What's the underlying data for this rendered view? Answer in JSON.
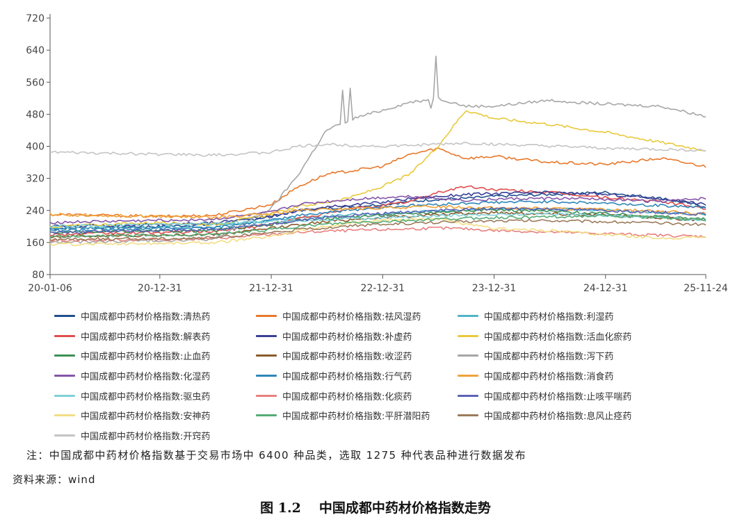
{
  "chart_data": {
    "type": "line",
    "title": "",
    "xlabel": "",
    "ylabel": "",
    "ylim": [
      80,
      720
    ],
    "yticks": [
      80,
      160,
      240,
      320,
      400,
      480,
      560,
      640,
      720
    ],
    "xticks": [
      "20-01-06",
      "20-12-31",
      "21-12-31",
      "22-12-31",
      "23-12-31",
      "24-12-31",
      "25-11-24"
    ],
    "xtick_positions_years": [
      0,
      0.985,
      1.985,
      2.985,
      3.985,
      4.985,
      5.885
    ],
    "x_anchor_labels": [
      "20-01-06",
      "20-12-31",
      "21-06-30",
      "21-12-31",
      "22-03-31",
      "22-06-30",
      "22-09-30",
      "22-12-31",
      "23-03-31",
      "23-06-30",
      "23-09-30",
      "23-12-31",
      "24-06-30",
      "24-12-31",
      "25-06-30",
      "25-11-24"
    ],
    "grid": false,
    "legend": "bottom",
    "series": [
      {
        "name": "中国成都中药材价格指数:清热药",
        "color": "#1f4e8c",
        "values": [
          195,
          200,
          205,
          225,
          240,
          245,
          250,
          255,
          262,
          268,
          270,
          275,
          280,
          285,
          270,
          250
        ]
      },
      {
        "name": "中国成都中药材价格指数:祛风湿药",
        "color": "#e8782a",
        "values": [
          230,
          225,
          228,
          255,
          300,
          330,
          340,
          350,
          380,
          395,
          370,
          375,
          360,
          355,
          370,
          350
        ]
      },
      {
        "name": "中国成都中药材价格指数:利湿药",
        "color": "#4fb3c8",
        "values": [
          195,
          198,
          200,
          215,
          222,
          226,
          230,
          232,
          235,
          238,
          240,
          242,
          244,
          240,
          235,
          230
        ]
      },
      {
        "name": "中国成都中药材价格指数:解表药",
        "color": "#e04d4d",
        "values": [
          180,
          185,
          188,
          205,
          220,
          232,
          245,
          252,
          262,
          285,
          300,
          292,
          285,
          272,
          262,
          245
        ]
      },
      {
        "name": "中国成都中药材价格指数:补虚药",
        "color": "#3a3f96",
        "values": [
          200,
          205,
          210,
          225,
          240,
          248,
          255,
          260,
          270,
          275,
          280,
          282,
          285,
          280,
          270,
          255
        ]
      },
      {
        "name": "中国成都中药材价格指数:活血化瘀药",
        "color": "#e8c93a",
        "values": [
          200,
          210,
          205,
          230,
          250,
          260,
          275,
          300,
          330,
          400,
          490,
          470,
          455,
          435,
          410,
          390
        ]
      },
      {
        "name": "中国成都中药材价格指数:止血药",
        "color": "#3d8f55",
        "values": [
          185,
          188,
          190,
          205,
          215,
          220,
          225,
          228,
          232,
          236,
          240,
          242,
          238,
          232,
          225,
          218
        ]
      },
      {
        "name": "中国成都中药材价格指数:收涩药",
        "color": "#8a5a2b",
        "values": [
          175,
          178,
          180,
          195,
          205,
          212,
          218,
          222,
          226,
          230,
          232,
          235,
          232,
          228,
          222,
          215
        ]
      },
      {
        "name": "中国成都中药材价格指数:泻下药",
        "color": "#a6a6a6",
        "values": [
          160,
          165,
          168,
          245,
          330,
          440,
          470,
          490,
          510,
          520,
          500,
          500,
          515,
          505,
          500,
          475
        ]
      },
      {
        "name": "中国成都中药材价格指数:化湿药",
        "color": "#8455a8",
        "values": [
          210,
          215,
          218,
          235,
          255,
          262,
          268,
          272,
          275,
          270,
          265,
          268,
          270,
          268,
          262,
          270
        ]
      },
      {
        "name": "中国成都中药材价格指数:行气药",
        "color": "#2e86b8",
        "values": [
          190,
          195,
          198,
          215,
          228,
          235,
          242,
          248,
          252,
          255,
          258,
          260,
          262,
          258,
          252,
          248
        ]
      },
      {
        "name": "中国成都中药材价格指数:消食药",
        "color": "#f0a33a",
        "values": [
          230,
          225,
          222,
          232,
          240,
          242,
          245,
          246,
          248,
          250,
          248,
          246,
          245,
          242,
          238,
          232
        ]
      },
      {
        "name": "中国成都中药材价格指数:驱虫药",
        "color": "#7fd0d8",
        "values": [
          200,
          205,
          208,
          212,
          215,
          218,
          220,
          222,
          224,
          226,
          228,
          230,
          232,
          228,
          222,
          215
        ]
      },
      {
        "name": "中国成都中药材价格指数:化痰药",
        "color": "#e87f7f",
        "values": [
          165,
          168,
          170,
          180,
          185,
          188,
          190,
          192,
          194,
          196,
          194,
          190,
          186,
          182,
          178,
          175
        ]
      },
      {
        "name": "中国成都中药材价格指数:止咳平喘药",
        "color": "#5a63b5",
        "values": [
          185,
          190,
          193,
          205,
          215,
          222,
          228,
          232,
          236,
          240,
          242,
          245,
          244,
          240,
          235,
          230
        ]
      },
      {
        "name": "中国成都中药材价格指数:安神药",
        "color": "#f2dd84",
        "values": [
          155,
          158,
          160,
          175,
          190,
          200,
          210,
          215,
          218,
          220,
          205,
          195,
          190,
          180,
          170,
          175
        ]
      },
      {
        "name": "中国成都中药材价格指数:平肝潜阳药",
        "color": "#55ab77",
        "values": [
          175,
          178,
          180,
          192,
          200,
          205,
          210,
          212,
          215,
          218,
          220,
          222,
          224,
          226,
          222,
          218
        ]
      },
      {
        "name": "中国成都中药材价格指数:息风止痉药",
        "color": "#9b7b5b",
        "values": [
          168,
          170,
          172,
          184,
          192,
          197,
          202,
          205,
          208,
          210,
          212,
          214,
          215,
          212,
          208,
          205
        ]
      },
      {
        "name": "中国成都中药材价格指数:开窍药",
        "color": "#c4c4c4",
        "values": [
          385,
          380,
          378,
          385,
          400,
          405,
          402,
          400,
          402,
          405,
          408,
          405,
          400,
          395,
          392,
          390
        ]
      }
    ]
  },
  "legend_rows": [
    [
      0,
      1,
      2
    ],
    [
      3,
      4,
      5
    ],
    [
      6,
      7,
      8
    ],
    [
      9,
      10,
      11
    ],
    [
      12,
      13,
      14
    ],
    [
      15,
      16,
      17
    ],
    [
      18
    ]
  ],
  "note": "注：中国成都中药材价格指数基于交易市场中 6400 种品类，选取 1275 种代表品种进行数据发布",
  "source": "资料来源：wind",
  "caption": {
    "number": "图 1.2",
    "text": "中国成都中药材价格指数走势"
  }
}
